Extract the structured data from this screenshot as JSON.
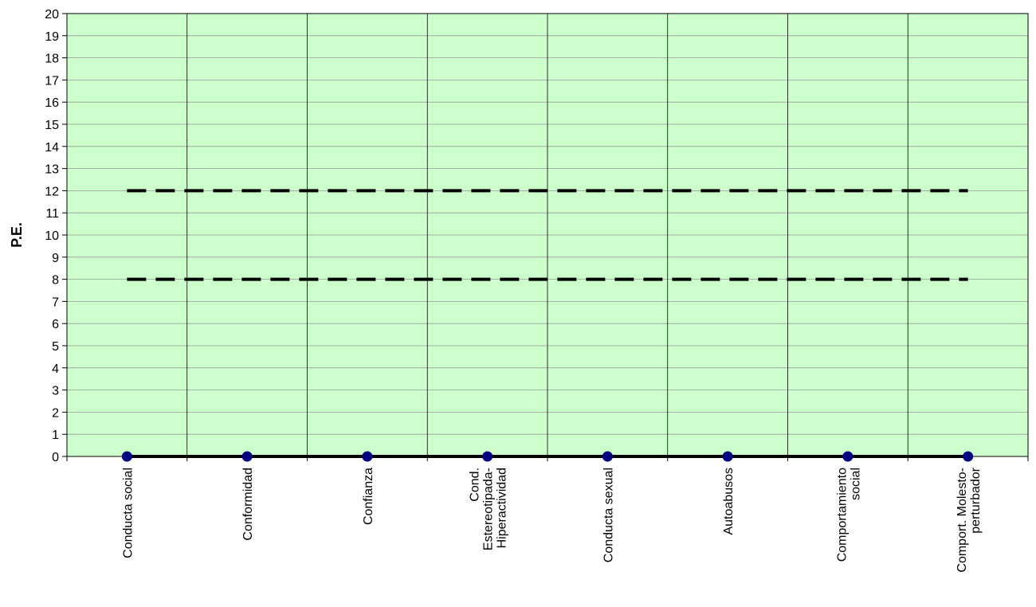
{
  "chart_data": {
    "type": "line",
    "title": "",
    "xlabel": "",
    "ylabel": "P.E.",
    "ylim": [
      0,
      20
    ],
    "y_ticks": [
      0,
      1,
      2,
      3,
      4,
      5,
      6,
      7,
      8,
      9,
      10,
      11,
      12,
      13,
      14,
      15,
      16,
      17,
      18,
      19,
      20
    ],
    "categories": [
      [
        "Conducta social"
      ],
      [
        "Conformidad"
      ],
      [
        "Confianza"
      ],
      [
        "Cond.",
        "Estereotipada-",
        "Hiperactividad"
      ],
      [
        "Conducta sexual"
      ],
      [
        "Autoabusos"
      ],
      [
        "Comportamiento",
        "social"
      ],
      [
        "Comport. Molesto-",
        "perturbador"
      ]
    ],
    "series": [
      {
        "values": [
          0,
          0,
          0,
          0,
          0,
          0,
          0,
          0
        ],
        "style": "solid-markers",
        "color": "#000000",
        "marker_color": "#000080"
      },
      {
        "values": [
          12,
          12,
          12,
          12,
          12,
          12,
          12,
          12
        ],
        "style": "dashed",
        "color": "#000000"
      },
      {
        "values": [
          8,
          8,
          8,
          8,
          8,
          8,
          8,
          8
        ],
        "style": "dashed",
        "color": "#000000"
      }
    ],
    "plot_background": "#ccffcc",
    "grid": true,
    "legend": "none"
  }
}
